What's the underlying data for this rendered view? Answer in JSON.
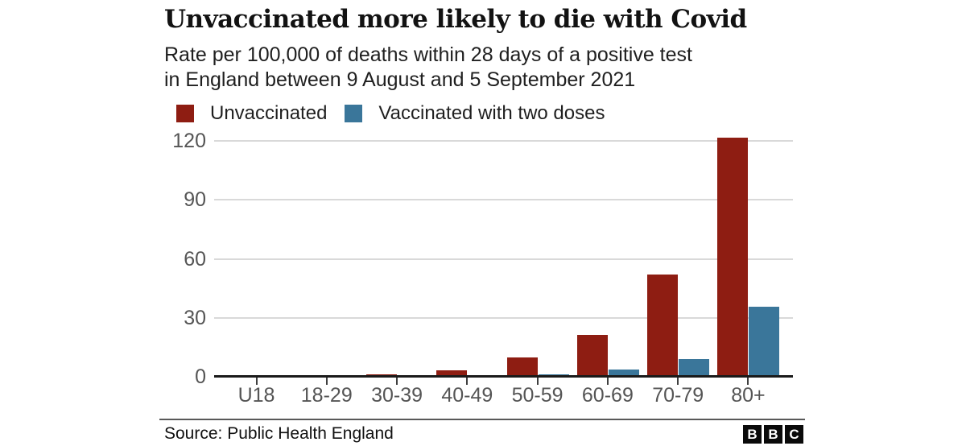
{
  "header": {
    "title": "Unvaccinated more likely to die with Covid",
    "subtitle_line1": "Rate per 100,000 of deaths within 28 days of a positive test",
    "subtitle_line2": "in England between 9 August and 5 September 2021"
  },
  "legend": [
    {
      "label": "Unvaccinated",
      "color": "#8e1d12"
    },
    {
      "label": "Vaccinated with two doses",
      "color": "#3a769a"
    }
  ],
  "chart_data": {
    "type": "bar",
    "title": "Unvaccinated more likely to die with Covid",
    "subtitle": "Rate per 100,000 of deaths within 28 days of a positive test in England between 9 August and 5 September 2021",
    "categories": [
      "U18",
      "18-29",
      "30-39",
      "40-49",
      "50-59",
      "60-69",
      "70-79",
      "80+"
    ],
    "series": [
      {
        "name": "Unvaccinated",
        "color": "#8e1d12",
        "values": [
          0,
          0.3,
          1.2,
          3.3,
          9.8,
          21.3,
          51.9,
          121.6
        ]
      },
      {
        "name": "Vaccinated with two doses",
        "color": "#3a769a",
        "values": [
          0,
          0.1,
          0.2,
          0.5,
          1.2,
          3.5,
          8.9,
          35.7
        ]
      }
    ],
    "xlabel": "",
    "ylabel": "",
    "yticks": [
      0,
      30,
      60,
      90,
      120
    ],
    "ylim": [
      0,
      125
    ],
    "grid": true,
    "gridline_color": "#d9d9d9",
    "axis_color": "#1a1a1a",
    "legend_position": "top"
  },
  "footer": {
    "source": "Source: Public Health England",
    "logo_letters": [
      "B",
      "B",
      "C"
    ]
  }
}
